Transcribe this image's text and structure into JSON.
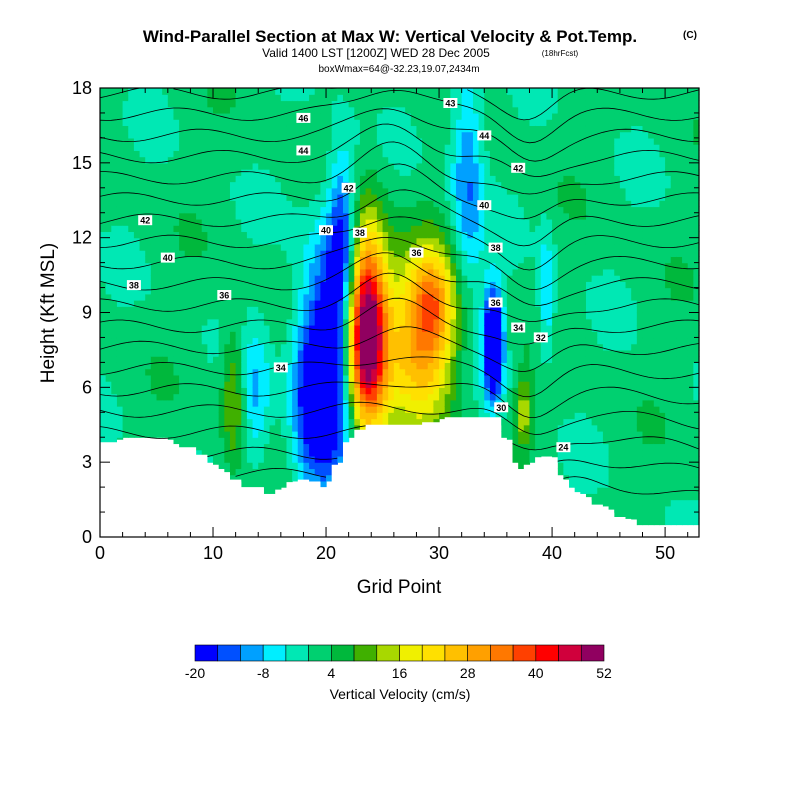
{
  "chart_data": {
    "type": "heatmap",
    "title": "Wind-Parallel Section at Max W: Vertical Velocity & Pot.Temp.",
    "copyright": "(C)",
    "subtitle": "Valid 1400 LST [1200Z] WED 28 Dec 2005",
    "forecast_note": "(18hrFcst)",
    "subtitle2": "boxWmax=64@-32.23,19.07,2434m",
    "xlabel": "Grid Point",
    "ylabel": "Height (Kft MSL)",
    "xlim": [
      0,
      53
    ],
    "ylim": [
      0,
      18
    ],
    "x_ticks": [
      "0",
      "10",
      "20",
      "30",
      "40",
      "50"
    ],
    "y_ticks": [
      "0",
      "3",
      "6",
      "9",
      "12",
      "15",
      "18"
    ],
    "colorbar": {
      "label": "Vertical Velocity (cm/s)",
      "tick_labels": [
        "-20",
        "-8",
        "4",
        "16",
        "28",
        "40",
        "52"
      ],
      "levels": [
        -20,
        -16,
        -12,
        -8,
        -4,
        0,
        4,
        8,
        12,
        16,
        20,
        24,
        28,
        32,
        36,
        40,
        44,
        48,
        52
      ],
      "colors": [
        "#0000ff",
        "#0050ff",
        "#00a0ff",
        "#00eeff",
        "#00e8b4",
        "#00d070",
        "#00b83c",
        "#40b000",
        "#a8d800",
        "#f0f000",
        "#ffe000",
        "#ffc000",
        "#ffa000",
        "#ff7800",
        "#ff4000",
        "#ff0000",
        "#d0003c",
        "#900060"
      ]
    },
    "terrain_kft": [
      [
        0,
        3.8
      ],
      [
        1,
        3.8
      ],
      [
        2,
        3.9
      ],
      [
        3,
        3.9
      ],
      [
        4,
        3.9
      ],
      [
        5,
        3.9
      ],
      [
        6,
        3.9
      ],
      [
        7,
        3.6
      ],
      [
        8,
        3.6
      ],
      [
        9,
        3.3
      ],
      [
        10,
        2.9
      ],
      [
        11,
        2.6
      ],
      [
        12,
        2.3
      ],
      [
        13,
        2.0
      ],
      [
        14,
        2.0
      ],
      [
        15,
        1.6
      ],
      [
        16,
        1.9
      ],
      [
        17,
        2.2
      ],
      [
        18,
        2.3
      ],
      [
        19,
        2.2
      ],
      [
        20,
        2.0
      ],
      [
        21,
        2.9
      ],
      [
        22,
        3.8
      ],
      [
        23,
        4.3
      ],
      [
        24,
        4.5
      ],
      [
        25,
        4.5
      ],
      [
        26,
        4.5
      ],
      [
        27,
        4.5
      ],
      [
        28,
        4.5
      ],
      [
        29,
        4.6
      ],
      [
        30,
        4.6
      ],
      [
        31,
        4.8
      ],
      [
        32,
        4.8
      ],
      [
        33,
        4.8
      ],
      [
        34,
        4.8
      ],
      [
        35,
        4.8
      ],
      [
        36,
        3.9
      ],
      [
        37,
        2.6
      ],
      [
        38,
        2.9
      ],
      [
        39,
        3.2
      ],
      [
        40,
        3.2
      ],
      [
        41,
        2.3
      ],
      [
        42,
        1.8
      ],
      [
        43,
        1.6
      ],
      [
        44,
        1.3
      ],
      [
        45,
        1.1
      ],
      [
        46,
        0.8
      ],
      [
        47,
        0.7
      ],
      [
        48,
        0.4
      ],
      [
        49,
        0.4
      ],
      [
        50,
        0.4
      ],
      [
        51,
        0.4
      ],
      [
        52,
        0.4
      ],
      [
        53,
        0.4
      ]
    ],
    "w_features": [
      {
        "x": 23.5,
        "z": 8.2,
        "sx": 1.3,
        "sz": 2.8,
        "w": 62
      },
      {
        "x": 28.5,
        "z": 8.0,
        "sx": 2.2,
        "sz": 2.4,
        "w": 28
      },
      {
        "x": 29.5,
        "z": 9.5,
        "sx": 1.2,
        "sz": 1.3,
        "w": 14
      },
      {
        "x": 20.5,
        "z": 7.0,
        "sx": 1.8,
        "sz": 3.5,
        "w": -26
      },
      {
        "x": 18.5,
        "z": 5.5,
        "sx": 1.2,
        "sz": 2.5,
        "w": -12
      },
      {
        "x": 34.8,
        "z": 7.8,
        "sx": 0.6,
        "sz": 1.5,
        "w": -36
      },
      {
        "x": 32.5,
        "z": 14.5,
        "sx": 1.0,
        "sz": 3.5,
        "w": -14
      },
      {
        "x": 21.5,
        "z": 12.0,
        "sx": 0.9,
        "sz": 2.5,
        "w": -18
      },
      {
        "x": 11.8,
        "z": 5.8,
        "sx": 0.7,
        "sz": 2.0,
        "w": 12
      },
      {
        "x": 13.8,
        "z": 5.5,
        "sx": 0.9,
        "sz": 2.0,
        "w": -10
      },
      {
        "x": 39.5,
        "z": 9.5,
        "sx": 0.5,
        "sz": 2.0,
        "w": -10
      },
      {
        "x": 37.5,
        "z": 5.0,
        "sx": 0.5,
        "sz": 1.0,
        "w": 14
      }
    ],
    "isentrope_labels": [
      {
        "value": "46",
        "x": 18.0,
        "z": 16.8
      },
      {
        "value": "43",
        "x": 31.0,
        "z": 17.4
      },
      {
        "value": "44",
        "x": 34.0,
        "z": 16.1
      },
      {
        "value": "44",
        "x": 18.0,
        "z": 15.5
      },
      {
        "value": "42",
        "x": 37.0,
        "z": 14.8
      },
      {
        "value": "42",
        "x": 22.0,
        "z": 14.0
      },
      {
        "value": "40",
        "x": 34.0,
        "z": 13.3
      },
      {
        "value": "42",
        "x": 4.0,
        "z": 12.7
      },
      {
        "value": "40",
        "x": 20.0,
        "z": 12.3
      },
      {
        "value": "38",
        "x": 23.0,
        "z": 12.2
      },
      {
        "value": "38",
        "x": 35.0,
        "z": 11.6
      },
      {
        "value": "36",
        "x": 28.0,
        "z": 11.4
      },
      {
        "value": "40",
        "x": 6.0,
        "z": 11.2
      },
      {
        "value": "38",
        "x": 3.0,
        "z": 10.1
      },
      {
        "value": "36",
        "x": 11.0,
        "z": 9.7
      },
      {
        "value": "36",
        "x": 35.0,
        "z": 9.4
      },
      {
        "value": "34",
        "x": 37.0,
        "z": 8.4
      },
      {
        "value": "32",
        "x": 39.0,
        "z": 8.0
      },
      {
        "value": "34",
        "x": 16.0,
        "z": 6.8
      },
      {
        "value": "30",
        "x": 35.5,
        "z": 5.2
      },
      {
        "value": "24",
        "x": 41.0,
        "z": 3.6
      }
    ]
  }
}
